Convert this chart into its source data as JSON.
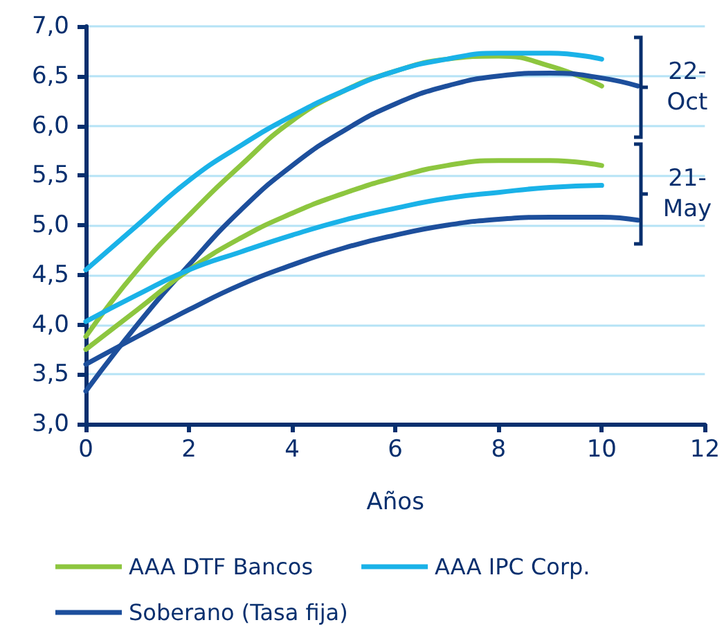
{
  "chart_data": {
    "type": "line",
    "xlabel": "Años",
    "legend": "bottom",
    "grid": "y",
    "marker": "none",
    "line_style": "solid",
    "xlim": [
      0,
      12
    ],
    "xticks": [
      0,
      2,
      4,
      6,
      8,
      10,
      12
    ],
    "ylim": [
      3,
      7
    ],
    "yticks": [
      {
        "value": 3,
        "label": "3,0"
      },
      {
        "value": 3.5,
        "label": "3,5"
      },
      {
        "value": 4,
        "label": "4,0"
      },
      {
        "value": 4.5,
        "label": "4,5"
      },
      {
        "value": 5,
        "label": "5,0"
      },
      {
        "value": 5.5,
        "label": "5,5"
      },
      {
        "value": 6,
        "label": "6,0"
      },
      {
        "value": 6.5,
        "label": "6,5"
      },
      {
        "value": 7,
        "label": "7,0"
      }
    ],
    "annotations": [
      "22-Oct",
      "21-May"
    ],
    "series": [
      {
        "name": "AAA DTF Bancos",
        "color": "#8dc63f",
        "x": [
          0,
          1,
          2,
          3,
          4,
          5,
          6,
          7,
          8,
          9,
          10
        ],
        "values": [
          3.88,
          4.55,
          5.1,
          5.6,
          6.05,
          6.35,
          6.55,
          6.67,
          6.7,
          6.6,
          6.4
        ]
      },
      {
        "name": "AAA IPC Corp.",
        "color": "#1ab2e8",
        "x": [
          0,
          1,
          2,
          3,
          4,
          5,
          6,
          7,
          8,
          9,
          10
        ],
        "values": [
          4.55,
          5.0,
          5.45,
          5.8,
          6.1,
          6.35,
          6.55,
          6.67,
          6.73,
          6.73,
          6.67
        ]
      },
      {
        "name": "Soberano (Tasa fija)",
        "color": "#1d4f9c",
        "x": [
          0,
          1,
          2,
          3,
          4,
          5,
          6,
          7,
          8,
          9,
          10,
          10.7
        ],
        "values": [
          3.33,
          4.0,
          4.6,
          5.15,
          5.6,
          5.95,
          6.22,
          6.4,
          6.5,
          6.53,
          6.48,
          6.4
        ]
      },
      {
        "color": "#8dc63f",
        "x": [
          0,
          1,
          2,
          3,
          4,
          5,
          6,
          7,
          8,
          9,
          10
        ],
        "values": [
          3.75,
          4.15,
          4.55,
          4.87,
          5.12,
          5.32,
          5.48,
          5.6,
          5.65,
          5.65,
          5.6
        ]
      },
      {
        "color": "#1ab2e8",
        "x": [
          0,
          1,
          2,
          3,
          4,
          5,
          6,
          7,
          8,
          9,
          10
        ],
        "values": [
          4.03,
          4.3,
          4.55,
          4.73,
          4.9,
          5.05,
          5.17,
          5.27,
          5.33,
          5.38,
          5.4
        ]
      },
      {
        "color": "#1d4f9c",
        "x": [
          0,
          1,
          2,
          3,
          4,
          5,
          6,
          7,
          8,
          9,
          10,
          10.7
        ],
        "values": [
          3.6,
          3.88,
          4.15,
          4.4,
          4.6,
          4.77,
          4.9,
          5.0,
          5.06,
          5.08,
          5.08,
          5.05
        ]
      }
    ]
  }
}
